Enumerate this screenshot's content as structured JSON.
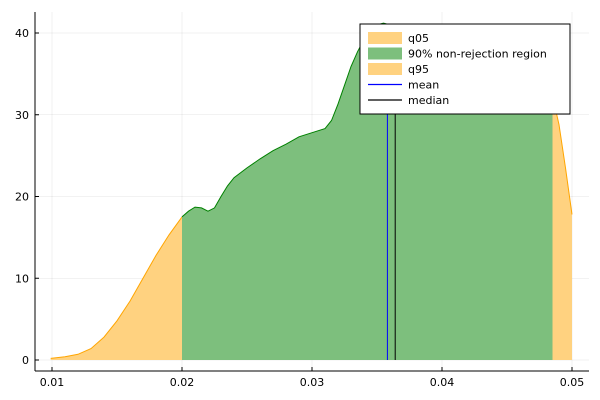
{
  "chart_data": {
    "type": "area",
    "xlim": [
      0.01,
      0.05
    ],
    "ylim": [
      0,
      40
    ],
    "x_ticks": [
      0.01,
      0.02,
      0.03,
      0.04,
      0.05
    ],
    "x_tick_labels": [
      "0.01",
      "0.02",
      "0.03",
      "0.04",
      "0.05"
    ],
    "y_ticks": [
      0,
      10,
      20,
      30,
      40
    ],
    "y_tick_labels": [
      "0",
      "10",
      "20",
      "30",
      "40"
    ],
    "grid": true,
    "legend_position": "top-right",
    "density": {
      "x": [
        0.0099,
        0.011,
        0.012,
        0.013,
        0.014,
        0.015,
        0.016,
        0.017,
        0.018,
        0.019,
        0.02,
        0.0205,
        0.021,
        0.0215,
        0.022,
        0.0225,
        0.023,
        0.0235,
        0.024,
        0.025,
        0.026,
        0.027,
        0.028,
        0.029,
        0.03,
        0.031,
        0.0315,
        0.032,
        0.0325,
        0.033,
        0.0335,
        0.034,
        0.0345,
        0.035,
        0.0355,
        0.036,
        0.0365,
        0.037,
        0.0375,
        0.038,
        0.0385,
        0.039,
        0.0395,
        0.04,
        0.041,
        0.042,
        0.043,
        0.044,
        0.045,
        0.046,
        0.047,
        0.048,
        0.0485,
        0.049,
        0.0495,
        0.05
      ],
      "y": [
        0.2,
        0.4,
        0.7,
        1.4,
        2.8,
        4.8,
        7.2,
        10.0,
        12.8,
        15.3,
        17.5,
        18.2,
        18.7,
        18.6,
        18.2,
        18.6,
        20.0,
        21.3,
        22.3,
        23.5,
        24.6,
        25.6,
        26.4,
        27.3,
        27.8,
        28.3,
        29.3,
        31.3,
        33.6,
        35.9,
        37.7,
        39.2,
        40.3,
        41.0,
        41.2,
        41.0,
        40.6,
        40.3,
        40.4,
        40.7,
        41.0,
        41.1,
        41.0,
        40.5,
        39.5,
        38.6,
        37.9,
        37.2,
        36.5,
        35.6,
        34.4,
        32.9,
        32.3,
        28.8,
        23.5,
        17.8
      ]
    },
    "q05": 0.02,
    "q95": 0.0485,
    "mean": 0.0358,
    "median": 0.0364,
    "series": [
      {
        "name": "q05",
        "color": "#ffd280"
      },
      {
        "name": "90% non-rejection region",
        "color": "#7dbf7d"
      },
      {
        "name": "q95",
        "color": "#ffd280"
      },
      {
        "name": "mean",
        "color": "#0000ff"
      },
      {
        "name": "median",
        "color": "#000000"
      }
    ],
    "colors": {
      "tail_line": "#ffa500",
      "region_line": "#008000",
      "mean": "#0000ff",
      "median": "#000000"
    }
  }
}
